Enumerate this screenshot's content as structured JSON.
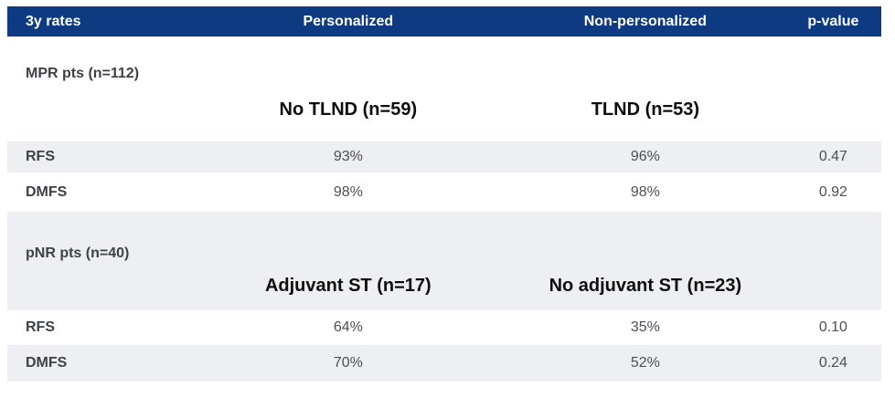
{
  "title": "3-year outcome rates table",
  "colors": {
    "header_bg": "#0d3a80",
    "header_text": "#ffffff",
    "row_alt_bg": "#edeff3",
    "section_label_text": "#3d4247",
    "subheader_text": "#0e0e0f",
    "value_text": "#4b4f54"
  },
  "chart_data": {
    "type": "table",
    "title": "3y rates",
    "columns": [
      "3y rates",
      "Personalized",
      "Non-personalized",
      "p-value"
    ],
    "layout_hints": {
      "header_style": "dark navy bar, white bold text",
      "zebra_rows": "alternating white / light blue-gray",
      "column_alignment": [
        "left",
        "center",
        "center",
        "center"
      ]
    },
    "sections": [
      {
        "label": "MPR pts (n=112)",
        "personalized_subheader": "No TLND (n=59)",
        "non_personalized_subheader": "TLND (n=53)",
        "rows": [
          {
            "label": "RFS",
            "personalized": "93%",
            "non_personalized": "96%",
            "p_value": "0.47"
          },
          {
            "label": "DMFS",
            "personalized": "98%",
            "non_personalized": "98%",
            "p_value": "0.92"
          }
        ]
      },
      {
        "label": "pNR pts (n=40)",
        "personalized_subheader": "Adjuvant ST (n=17)",
        "non_personalized_subheader": "No adjuvant ST (n=23)",
        "rows": [
          {
            "label": "RFS",
            "personalized": "64%",
            "non_personalized": "35%",
            "p_value": "0.10"
          },
          {
            "label": "DMFS",
            "personalized": "70%",
            "non_personalized": "52%",
            "p_value": "0.24"
          }
        ]
      }
    ]
  }
}
